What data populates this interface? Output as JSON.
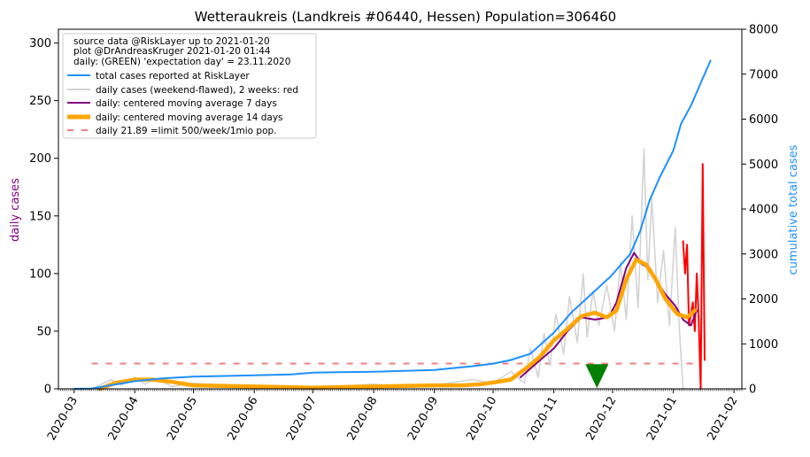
{
  "chart_data": {
    "type": "line",
    "title": "Wetteraukreis (Landkreis #06440, Hessen) Population=306460",
    "ylabel_left": "daily cases",
    "ylabel_right": "cumulative total cases",
    "ylabel_left_color": "#800080",
    "ylabel_right_color": "#1e90ff",
    "x_range": [
      "2020-02-22",
      "2021-02-05"
    ],
    "ylim_left": [
      0,
      312
    ],
    "ylim_right": [
      0,
      8000
    ],
    "yticks_left": [
      0,
      50,
      100,
      150,
      200,
      250,
      300
    ],
    "yticks_right": [
      0,
      1000,
      2000,
      3000,
      4000,
      5000,
      6000,
      7000,
      8000
    ],
    "xtick_labels": [
      "2020-03",
      "2020-04",
      "2020-05",
      "2020-06",
      "2020-07",
      "2020-08",
      "2020-09",
      "2020-10",
      "2020-11",
      "2020-12",
      "2021-01",
      "2021-02"
    ],
    "xtick_dates": [
      "2020-03-01",
      "2020-04-01",
      "2020-05-01",
      "2020-06-01",
      "2020-07-01",
      "2020-08-01",
      "2020-09-01",
      "2020-10-01",
      "2020-11-01",
      "2020-12-01",
      "2021-01-01",
      "2021-02-01"
    ],
    "legend_placement": "top-left",
    "legend_header": [
      "source data @RiskLayer up to 2021-01-20",
      "plot @DrAndreasKruger 2021-01-20 01:44",
      "daily: (GREEN) 'expectation day' = 23.11.2020"
    ],
    "legend": [
      {
        "label": "total cases reported at RiskLayer",
        "color": "#1e90ff",
        "style": "line"
      },
      {
        "label": "daily cases (weekend-flawed), 2 weeks: red",
        "color": "#d3d3d3",
        "style": "line"
      },
      {
        "label": "daily: centered moving average 7 days",
        "color": "#800080",
        "style": "line"
      },
      {
        "label": "daily: centered moving average 14 days",
        "color": "#ffa500",
        "style": "thick"
      },
      {
        "label": "daily 21.89 =limit 500/week/1mio pop.",
        "color": "#f08080",
        "style": "dashed"
      }
    ],
    "limit_line": {
      "value": 21.89,
      "from": "2020-03-10",
      "to": "2021-01-15",
      "color": "#f08080"
    },
    "expectation_marker": {
      "date": "2020-11-23",
      "value": 6,
      "color": "#008000"
    },
    "series": [
      {
        "name": "total cases reported at RiskLayer",
        "axis": "right",
        "color": "#1e90ff",
        "points": [
          [
            "2020-03-01",
            0
          ],
          [
            "2020-03-10",
            5
          ],
          [
            "2020-03-20",
            80
          ],
          [
            "2020-04-01",
            170
          ],
          [
            "2020-04-15",
            230
          ],
          [
            "2020-05-01",
            270
          ],
          [
            "2020-06-01",
            300
          ],
          [
            "2020-06-20",
            320
          ],
          [
            "2020-07-01",
            360
          ],
          [
            "2020-08-01",
            380
          ],
          [
            "2020-09-01",
            420
          ],
          [
            "2020-09-20",
            500
          ],
          [
            "2020-10-01",
            560
          ],
          [
            "2020-10-10",
            640
          ],
          [
            "2020-10-20",
            780
          ],
          [
            "2020-11-01",
            1250
          ],
          [
            "2020-11-10",
            1700
          ],
          [
            "2020-11-20",
            2100
          ],
          [
            "2020-11-30",
            2500
          ],
          [
            "2020-12-10",
            3000
          ],
          [
            "2020-12-15",
            3500
          ],
          [
            "2020-12-20",
            4200
          ],
          [
            "2020-12-25",
            4700
          ],
          [
            "2021-01-01",
            5300
          ],
          [
            "2021-01-05",
            5900
          ],
          [
            "2021-01-10",
            6300
          ],
          [
            "2021-01-15",
            6800
          ],
          [
            "2021-01-20",
            7300
          ]
        ]
      },
      {
        "name": "daily cases (weekend-flawed), 2 weeks: red",
        "axis": "left",
        "color": "#d3d3d3",
        "points": [
          [
            "2020-03-10",
            0
          ],
          [
            "2020-03-20",
            8
          ],
          [
            "2020-03-25",
            3
          ],
          [
            "2020-04-01",
            10
          ],
          [
            "2020-04-06",
            4
          ],
          [
            "2020-04-12",
            9
          ],
          [
            "2020-04-20",
            2
          ],
          [
            "2020-05-01",
            5
          ],
          [
            "2020-05-15",
            3
          ],
          [
            "2020-06-01",
            2
          ],
          [
            "2020-07-01",
            1
          ],
          [
            "2020-08-01",
            4
          ],
          [
            "2020-08-15",
            2
          ],
          [
            "2020-09-01",
            3
          ],
          [
            "2020-09-20",
            8
          ],
          [
            "2020-10-01",
            5
          ],
          [
            "2020-10-10",
            15
          ],
          [
            "2020-10-17",
            5
          ],
          [
            "2020-10-20",
            35
          ],
          [
            "2020-10-24",
            10
          ],
          [
            "2020-10-27",
            48
          ],
          [
            "2020-10-30",
            20
          ],
          [
            "2020-11-02",
            65
          ],
          [
            "2020-11-06",
            30
          ],
          [
            "2020-11-09",
            80
          ],
          [
            "2020-11-13",
            40
          ],
          [
            "2020-11-16",
            100
          ],
          [
            "2020-11-18",
            45
          ],
          [
            "2020-11-21",
            85
          ],
          [
            "2020-11-24",
            55
          ],
          [
            "2020-11-28",
            90
          ],
          [
            "2020-12-02",
            50
          ],
          [
            "2020-12-05",
            110
          ],
          [
            "2020-12-08",
            60
          ],
          [
            "2020-12-11",
            150
          ],
          [
            "2020-12-14",
            70
          ],
          [
            "2020-12-17",
            208
          ],
          [
            "2020-12-19",
            95
          ],
          [
            "2020-12-21",
            165
          ],
          [
            "2020-12-24",
            75
          ],
          [
            "2020-12-27",
            120
          ],
          [
            "2020-12-30",
            55
          ],
          [
            "2021-01-02",
            140
          ],
          [
            "2021-01-04",
            55
          ],
          [
            "2021-01-06",
            0
          ]
        ]
      },
      {
        "name": "daily cases (last 2 weeks)",
        "axis": "left",
        "color": "#ff0000",
        "points": [
          [
            "2021-01-06",
            128
          ],
          [
            "2021-01-07",
            100
          ],
          [
            "2021-01-08",
            125
          ],
          [
            "2021-01-09",
            55
          ],
          [
            "2021-01-11",
            75
          ],
          [
            "2021-01-12",
            50
          ],
          [
            "2021-01-13",
            100
          ],
          [
            "2021-01-14",
            60
          ],
          [
            "2021-01-15",
            0
          ],
          [
            "2021-01-16",
            195
          ],
          [
            "2021-01-17",
            25
          ]
        ]
      },
      {
        "name": "daily: centered moving average 7 days",
        "axis": "left",
        "color": "#800080",
        "points": [
          [
            "2020-10-15",
            10
          ],
          [
            "2020-10-25",
            25
          ],
          [
            "2020-11-01",
            35
          ],
          [
            "2020-11-08",
            50
          ],
          [
            "2020-11-15",
            62
          ],
          [
            "2020-11-22",
            60
          ],
          [
            "2020-11-29",
            62
          ],
          [
            "2020-12-03",
            75
          ],
          [
            "2020-12-08",
            105
          ],
          [
            "2020-12-12",
            118
          ],
          [
            "2020-12-16",
            108
          ],
          [
            "2020-12-20",
            105
          ],
          [
            "2020-12-24",
            92
          ],
          [
            "2020-12-28",
            82
          ],
          [
            "2021-01-02",
            72
          ],
          [
            "2021-01-06",
            60
          ],
          [
            "2021-01-10",
            55
          ],
          [
            "2021-01-13",
            68
          ]
        ]
      },
      {
        "name": "daily: centered moving average 14 days",
        "axis": "left",
        "color": "#ffa500",
        "points": [
          [
            "2020-03-14",
            0
          ],
          [
            "2020-03-22",
            5
          ],
          [
            "2020-04-01",
            8
          ],
          [
            "2020-04-10",
            8
          ],
          [
            "2020-04-20",
            6
          ],
          [
            "2020-05-01",
            3
          ],
          [
            "2020-06-01",
            2
          ],
          [
            "2020-07-01",
            1
          ],
          [
            "2020-08-01",
            2
          ],
          [
            "2020-09-01",
            3
          ],
          [
            "2020-09-15",
            3
          ],
          [
            "2020-09-25",
            4
          ],
          [
            "2020-10-03",
            6
          ],
          [
            "2020-10-10",
            8
          ],
          [
            "2020-10-18",
            18
          ],
          [
            "2020-10-25",
            28
          ],
          [
            "2020-11-01",
            42
          ],
          [
            "2020-11-08",
            52
          ],
          [
            "2020-11-15",
            63
          ],
          [
            "2020-11-22",
            66
          ],
          [
            "2020-11-28",
            62
          ],
          [
            "2020-12-03",
            68
          ],
          [
            "2020-12-08",
            95
          ],
          [
            "2020-12-13",
            112
          ],
          [
            "2020-12-18",
            108
          ],
          [
            "2020-12-23",
            95
          ],
          [
            "2020-12-28",
            78
          ],
          [
            "2021-01-03",
            65
          ],
          [
            "2021-01-08",
            62
          ],
          [
            "2021-01-12",
            68
          ]
        ]
      }
    ]
  }
}
